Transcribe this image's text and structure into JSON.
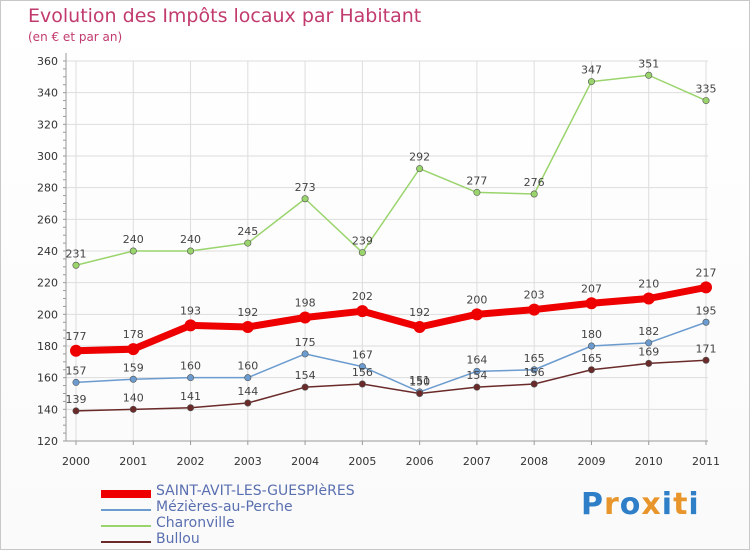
{
  "title": "Evolution des Impôts locaux par Habitant",
  "subtitle": "(en € et par an)",
  "logo": {
    "text": "Proxiti",
    "letters": [
      "P",
      "r",
      "o",
      "x",
      "i",
      "t",
      "i"
    ],
    "colors": [
      "#2e7ec8",
      "#e8952b",
      "#2e7ec8",
      "#e8952b",
      "#2e7ec8",
      "#e8952b",
      "#2e7ec8"
    ]
  },
  "chart_data": {
    "type": "line",
    "title": "Evolution des Impôts locaux par Habitant",
    "subtitle": "(en € et par an)",
    "xlabel": "",
    "ylabel": "",
    "x": [
      "2000",
      "2001",
      "2002",
      "2003",
      "2004",
      "2005",
      "2006",
      "2007",
      "2008",
      "2009",
      "2010",
      "2011"
    ],
    "ylim": [
      120,
      360
    ],
    "yticks": [
      "120",
      "140",
      "160",
      "180",
      "200",
      "220",
      "240",
      "260",
      "280",
      "300",
      "320",
      "340",
      "360"
    ],
    "grid": true,
    "legend_position": "bottom-left",
    "series": [
      {
        "name": "SAINT-AVIT-LES-GUESPIèRES",
        "color": "#ee0000",
        "values": [
          177,
          178,
          193,
          192,
          198,
          202,
          192,
          200,
          203,
          207,
          210,
          217
        ],
        "labels": [
          "177",
          "178",
          "193",
          "192",
          "198",
          "202",
          "192",
          "200",
          "203",
          "207",
          "210",
          "217"
        ]
      },
      {
        "name": "Mézières-au-Perche",
        "color": "#6c9ccf",
        "values": [
          157,
          159,
          160,
          160,
          175,
          167,
          151,
          164,
          165,
          180,
          182,
          195
        ],
        "labels": [
          "157",
          "159",
          "160",
          "160",
          "175",
          "167",
          "151",
          "164",
          "165",
          "180",
          "182",
          "195"
        ]
      },
      {
        "name": "Charonville",
        "color": "#9ad46c",
        "values": [
          231,
          240,
          240,
          245,
          273,
          239,
          292,
          277,
          276,
          347,
          351,
          335
        ],
        "labels": [
          "231",
          "240",
          "240",
          "245",
          "273",
          "239",
          "292",
          "277",
          "276",
          "347",
          "351",
          "335"
        ]
      },
      {
        "name": "Bullou",
        "color": "#6b2a2a",
        "values": [
          139,
          140,
          141,
          144,
          154,
          156,
          150,
          154,
          156,
          165,
          169,
          171
        ],
        "labels": [
          "139",
          "140",
          "141",
          "144",
          "154",
          "156",
          "150",
          "154",
          "156",
          "165",
          "169",
          "171"
        ]
      }
    ]
  }
}
